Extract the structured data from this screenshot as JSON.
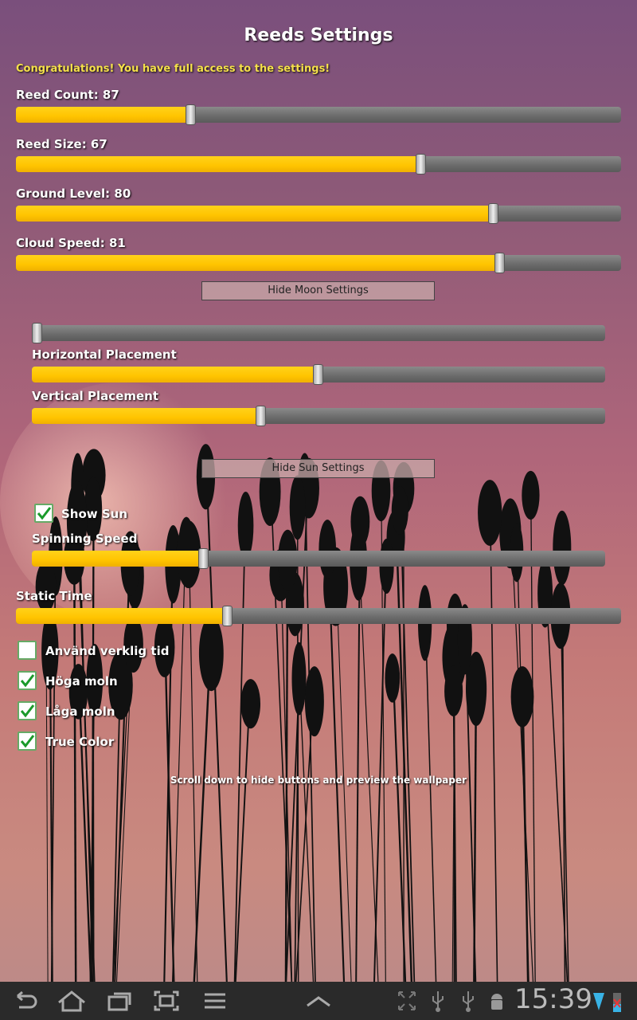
{
  "title": "Reeds Settings",
  "message": "Congratulations! You have full access to the settings!",
  "sliders": [
    {
      "label": "Reed Count: 87",
      "value": 0.29
    },
    {
      "label": "Reed Size: 67",
      "value": 0.67
    },
    {
      "label": "Ground Level: 80",
      "value": 0.79
    },
    {
      "label": "Cloud Speed: 81",
      "value": 0.8
    }
  ],
  "moon": {
    "button": "Hide Moon Settings",
    "top_slider": 0.01,
    "horizontal": {
      "label": "Horizontal Placement",
      "value": 0.5
    },
    "vertical": {
      "label": "Vertical Placement",
      "value": 0.4
    }
  },
  "sun": {
    "button": "Hide Sun Settings",
    "show_sun": {
      "label": "Show Sun",
      "checked": true
    },
    "spinning": {
      "label": "Spinning Speed",
      "value": 0.3
    }
  },
  "static_time": {
    "label": "Static Time",
    "value": 0.35
  },
  "checkboxes": [
    {
      "label": "Använd verklig tid",
      "checked": false
    },
    {
      "label": "Höga moln",
      "checked": true
    },
    {
      "label": "Låga moln",
      "checked": true
    },
    {
      "label": "True Color",
      "checked": true
    }
  ],
  "hint": "Scroll down to hide buttons and preview the wallpaper",
  "statusbar": {
    "time": "15:39"
  }
}
